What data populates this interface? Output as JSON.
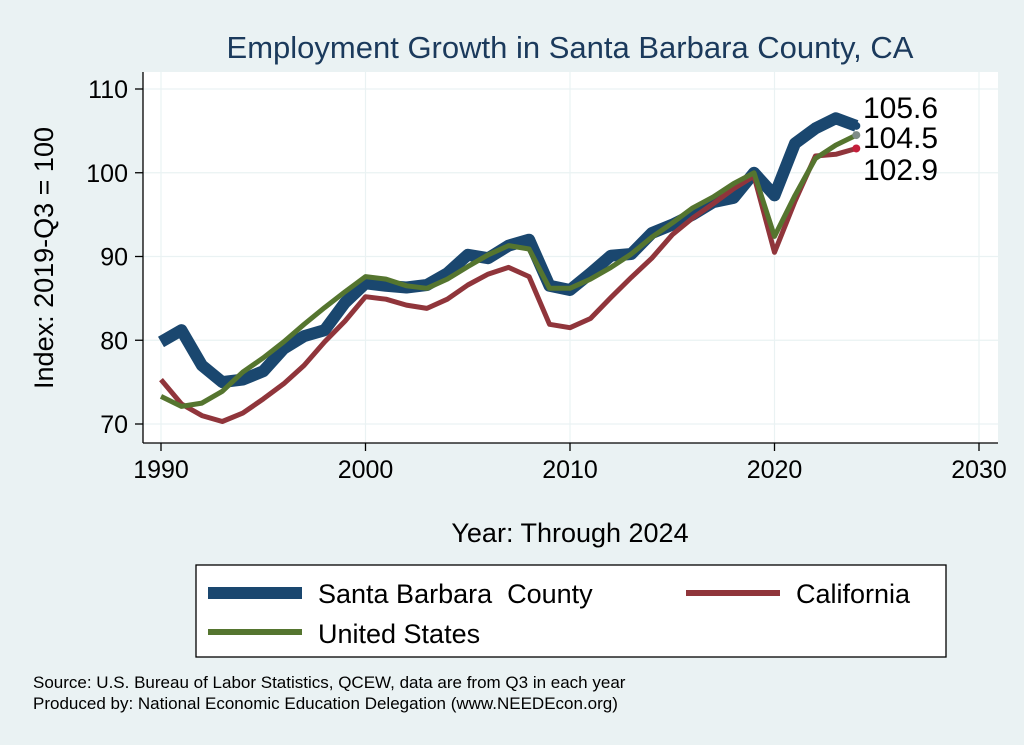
{
  "chart_data": {
    "type": "line",
    "title": "Employment Growth in Santa Barbara County, CA",
    "xlabel": "Year: Through 2024",
    "ylabel": "Index: 2019-Q3 = 100",
    "xlim": [
      1990,
      2030
    ],
    "ylim": [
      68,
      112
    ],
    "xticks": [
      1990,
      2000,
      2010,
      2020,
      2030
    ],
    "yticks": [
      70,
      80,
      90,
      100,
      110
    ],
    "grid": true,
    "legend_position": "bottom",
    "x": [
      1990,
      1991,
      1992,
      1993,
      1994,
      1995,
      1996,
      1997,
      1998,
      1999,
      2000,
      2001,
      2002,
      2003,
      2004,
      2005,
      2006,
      2007,
      2008,
      2009,
      2010,
      2011,
      2012,
      2013,
      2014,
      2015,
      2016,
      2017,
      2018,
      2019,
      2020,
      2021,
      2022,
      2023,
      2024
    ],
    "series": [
      {
        "name": "Santa Barbara  County",
        "color": "#1a476f",
        "values": [
          79.8,
          81.2,
          77.0,
          75.0,
          75.3,
          76.3,
          79.0,
          80.5,
          81.2,
          84.5,
          86.8,
          86.5,
          86.3,
          86.6,
          88.0,
          90.2,
          89.8,
          91.3,
          92.0,
          86.5,
          86.0,
          88.0,
          90.1,
          90.3,
          92.8,
          93.8,
          95.0,
          96.5,
          97.0,
          100.0,
          97.3,
          103.5,
          105.3,
          106.5,
          105.6
        ],
        "end_label": "105.6"
      },
      {
        "name": "California",
        "color": "#90353b",
        "values": [
          75.3,
          72.4,
          71.0,
          70.3,
          71.3,
          73.0,
          74.8,
          77.0,
          79.8,
          82.3,
          85.2,
          84.9,
          84.2,
          83.8,
          84.9,
          86.6,
          87.9,
          88.7,
          87.6,
          81.9,
          81.5,
          82.6,
          85.1,
          87.5,
          89.8,
          92.6,
          94.6,
          96.3,
          98.1,
          99.6,
          90.5,
          96.6,
          102.0,
          102.2,
          102.9
        ],
        "end_label": "102.9"
      },
      {
        "name": "United States",
        "color": "#55752f",
        "values": [
          73.3,
          72.1,
          72.5,
          73.9,
          76.2,
          77.9,
          79.8,
          81.9,
          83.9,
          85.8,
          87.6,
          87.3,
          86.5,
          86.2,
          87.3,
          88.8,
          90.2,
          91.3,
          90.9,
          86.2,
          86.2,
          87.3,
          88.7,
          90.3,
          92.3,
          94.0,
          95.8,
          97.1,
          98.7,
          100.0,
          92.4,
          97.3,
          101.7,
          103.3,
          104.5
        ],
        "end_label": "104.5"
      }
    ]
  },
  "source": {
    "line1": "Source: U.S. Bureau of Labor Statistics, QCEW, data are from Q3 in each year",
    "line2": "Produced by: National Economic Education Delegation (www.NEEDEcon.org)"
  },
  "colors": {
    "background": "#eaf2f3",
    "plot_background": "#ffffff",
    "title": "#1b3a5c",
    "end_marker_us": "#7f8c87",
    "end_marker_ca": "#c41e3a"
  }
}
